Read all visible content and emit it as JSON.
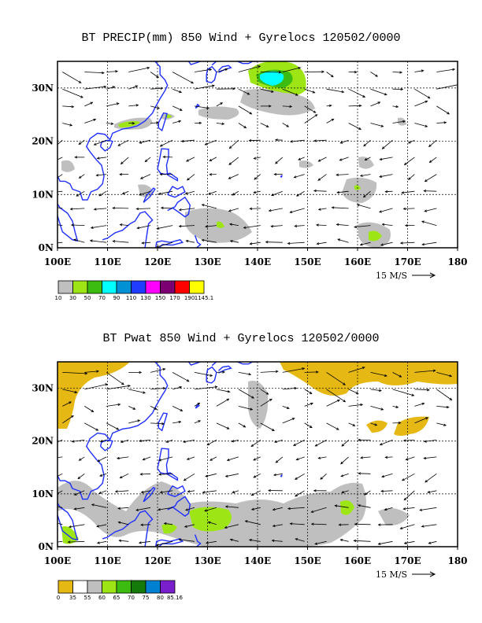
{
  "panel1": {
    "title": "BT PRECIP(mm) 850 Wind + Gyrelocs 120502/0000",
    "scale_label": "15 M/S",
    "colorbar": {
      "colors": [
        "#bfbfbf",
        "#9ee516",
        "#3cbc10",
        "#00ffff",
        "#0090d4",
        "#1f3cff",
        "#ff00ff",
        "#7d0073",
        "#ff0000",
        "#ffff00"
      ],
      "labels": [
        "10",
        "30",
        "50",
        "70",
        "90",
        "110",
        "130",
        "150",
        "170",
        "190",
        "1145.1"
      ]
    }
  },
  "panel2": {
    "title": "BT Pwat 850 Wind + Gyrelocs 120502/0000",
    "scale_label": "15 M/S",
    "colorbar": {
      "colors": [
        "#e5b814",
        "#ffffff",
        "#bfbfbf",
        "#9ee516",
        "#3cbc10",
        "#147a0a",
        "#0080d0",
        "#7a1fcc"
      ],
      "labels": [
        "0",
        "35",
        "55",
        "60",
        "65",
        "70",
        "75",
        "80",
        "85.16"
      ]
    }
  },
  "map": {
    "lon_labels": [
      "100E",
      "110E",
      "120E",
      "130E",
      "140E",
      "150E",
      "160E",
      "170E",
      "180"
    ],
    "lat_labels": [
      "0N",
      "10N",
      "20N",
      "30N"
    ],
    "colors": {
      "coast": "#1f2fff",
      "grid": "#000000",
      "land_fill": "#bfbfbf"
    }
  }
}
